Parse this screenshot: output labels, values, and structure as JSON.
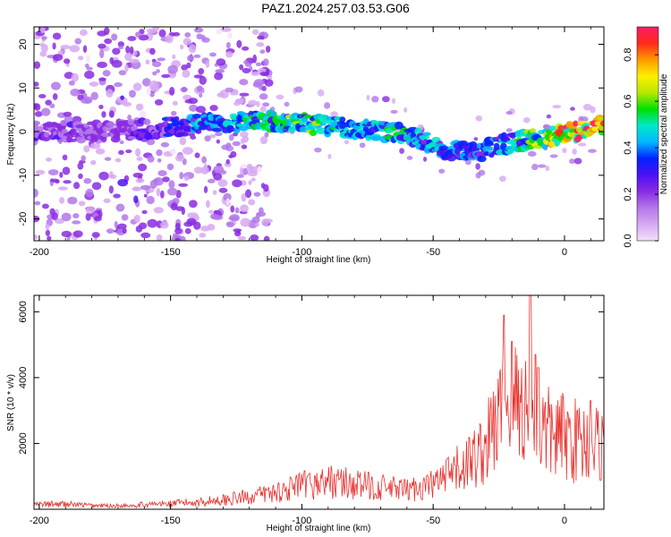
{
  "page_title": "PAZ1.2024.257.03.53.G06",
  "colors": {
    "snr_line": "#e8302c",
    "axes": "#000000",
    "grid": "#c8c8c8",
    "colormap": [
      "#f4e0fb",
      "#d7a8f2",
      "#b277ea",
      "#8a2be2",
      "#4b12f5",
      "#0022ff",
      "#00b8ff",
      "#00e8c8",
      "#00e000",
      "#b8e800",
      "#ffee00",
      "#ff9900",
      "#ff2a1a",
      "#ff1a66"
    ]
  },
  "chart_data": [
    {
      "type": "heatmap",
      "title": "",
      "xlabel": "Height of straight line (km)",
      "ylabel": "Frequency (Hz)",
      "xlim": [
        -202,
        15
      ],
      "ylim": [
        -25,
        24
      ],
      "xticks": [
        "-200",
        "-150",
        "-100",
        "-50",
        "0"
      ],
      "yticks": [
        "-20",
        "-10",
        "0",
        "10",
        "20"
      ],
      "colorbar": {
        "label": "Normalized spectral amplitude",
        "range": [
          0,
          0.92
        ],
        "ticks": [
          "0.0",
          "0.2",
          "0.4",
          "0.6",
          "0.8"
        ]
      },
      "signal_track": {
        "x": [
          -200,
          -175,
          -150,
          -135,
          -120,
          -105,
          -95,
          -85,
          -75,
          -65,
          -55,
          -45,
          -35,
          -25,
          -15,
          -5,
          5,
          15
        ],
        "freq": [
          0,
          0,
          1,
          2,
          2.5,
          2,
          1.5,
          1,
          0.5,
          0,
          -2,
          -4,
          -5,
          -3,
          -2,
          -1,
          0,
          2
        ],
        "amplitude": [
          0.25,
          0.2,
          0.3,
          0.45,
          0.5,
          0.55,
          0.55,
          0.5,
          0.45,
          0.5,
          0.45,
          0.4,
          0.35,
          0.4,
          0.55,
          0.75,
          0.85,
          0.8
        ]
      }
    },
    {
      "type": "line",
      "title": "",
      "xlabel": "Height of straight line (km)",
      "ylabel": "SNR (10 * v/v)",
      "xlim": [
        -202,
        15
      ],
      "ylim": [
        0,
        6500
      ],
      "xticks": [
        "-200",
        "-150",
        "-100",
        "-50",
        "0"
      ],
      "yticks": [
        "2000",
        "4000",
        "6000"
      ],
      "series": [
        {
          "x": [
            -202,
            -190,
            -180,
            -170,
            -160,
            -150,
            -140,
            -130,
            -120,
            -110,
            -100,
            -95,
            -90,
            -85,
            -80,
            -75,
            -70,
            -65,
            -60,
            -55,
            -50,
            -45,
            -40,
            -35,
            -30,
            -28,
            -25,
            -23,
            -20,
            -18,
            -15,
            -13,
            -10,
            -8,
            -5,
            0,
            5,
            10,
            15
          ],
          "y": [
            150,
            170,
            120,
            110,
            150,
            180,
            230,
            300,
            400,
            550,
            750,
            800,
            900,
            850,
            800,
            750,
            700,
            650,
            600,
            700,
            800,
            1000,
            1300,
            1600,
            2000,
            2400,
            2900,
            3200,
            3500,
            3400,
            3300,
            2900,
            2600,
            2500,
            2400,
            2300,
            2200,
            2100,
            2100
          ],
          "peaks": [
            {
              "x": -23,
              "y": 5900
            },
            {
              "x": -20,
              "y": 5100
            },
            {
              "x": -13,
              "y": 6500
            },
            {
              "x": -11,
              "y": 4700
            },
            {
              "x": -10,
              "y": 4300
            },
            {
              "x": 10,
              "y": 3300
            }
          ]
        }
      ]
    }
  ]
}
